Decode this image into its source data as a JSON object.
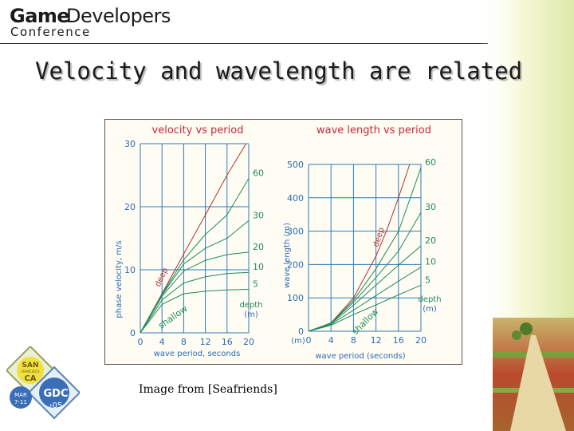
{
  "logo": {
    "game": "Game",
    "developers": "Developers",
    "conference": "Conference"
  },
  "slide_title": "Velocity and wavelength are related",
  "caption": "Image from [Seafriends]",
  "badge": {
    "city_line1": "SAN",
    "city_line2": "FRANCISCO",
    "state": "CA",
    "month": "MAR",
    "dates": "7-11",
    "brand": "GDC",
    "year": "›05"
  },
  "colors": {
    "chart_title": "#c8283c",
    "axis_label": "#2a6ab8",
    "depth_line": "#1e8a5a",
    "deep_line": "#b03030",
    "grid": "#2a7ab8"
  },
  "chart_data": [
    {
      "type": "line",
      "title": "velocity vs period",
      "xlabel": "wave period, seconds",
      "ylabel": "phase velocity, m/s",
      "xlim": [
        0,
        20
      ],
      "ylim": [
        0,
        30
      ],
      "x_ticks": [
        "0",
        "4",
        "8",
        "12",
        "16",
        "20"
      ],
      "y_ticks": [
        "0",
        "10",
        "20",
        "30"
      ],
      "annotations": {
        "deep": "deep",
        "shallow": "shallow",
        "depth": "depth",
        "unit": "(m)"
      },
      "series": [
        {
          "name": "deep",
          "x": [
            0,
            4,
            8,
            12,
            16,
            19.5
          ],
          "y": [
            0,
            6.2,
            12.5,
            18.7,
            25.0,
            30.0
          ]
        },
        {
          "name": "60",
          "x": [
            0,
            4,
            8,
            12,
            16,
            20
          ],
          "y": [
            0,
            6.1,
            11.6,
            15.6,
            18.7,
            24.5
          ]
        },
        {
          "name": "30",
          "x": [
            0,
            4,
            8,
            12,
            16,
            20
          ],
          "y": [
            0,
            6.0,
            10.9,
            13.4,
            15.0,
            17.8
          ]
        },
        {
          "name": "20",
          "x": [
            0,
            4,
            8,
            12,
            16,
            20
          ],
          "y": [
            0,
            5.8,
            9.8,
            11.5,
            12.4,
            12.8
          ]
        },
        {
          "name": "10",
          "x": [
            0,
            4,
            8,
            12,
            16,
            20
          ],
          "y": [
            0,
            5.2,
            7.9,
            8.9,
            9.4,
            9.6
          ]
        },
        {
          "name": "5",
          "x": [
            0,
            4,
            8,
            12,
            16,
            20
          ],
          "y": [
            0,
            4.5,
            6.2,
            6.6,
            6.8,
            6.9
          ]
        }
      ]
    },
    {
      "type": "line",
      "title": "wave length vs period",
      "xlabel": "wave period (seconds)",
      "ylabel": "wave length (m)",
      "xlim": [
        0,
        20
      ],
      "ylim": [
        0,
        500
      ],
      "x_ticks": [
        "0",
        "4",
        "8",
        "12",
        "16",
        "20"
      ],
      "y_ticks": [
        "0",
        "100",
        "200",
        "300",
        "400",
        "500"
      ],
      "annotations": {
        "deep": "deep",
        "shallow": "shallow",
        "depth": "depth",
        "unit": "(m)",
        "origin_unit": "(m)"
      },
      "series": [
        {
          "name": "deep",
          "x": [
            0,
            4,
            8,
            12,
            14,
            16,
            18
          ],
          "y": [
            0,
            25,
            100,
            225,
            306,
            400,
            506
          ]
        },
        {
          "name": "60",
          "x": [
            0,
            4,
            8,
            12,
            16,
            20
          ],
          "y": [
            0,
            24,
            93,
            187,
            299,
            490
          ]
        },
        {
          "name": "30",
          "x": [
            0,
            4,
            8,
            12,
            16,
            20
          ],
          "y": [
            0,
            24,
            87,
            161,
            240,
            356
          ]
        },
        {
          "name": "20",
          "x": [
            0,
            4,
            8,
            12,
            16,
            20
          ],
          "y": [
            0,
            23,
            78,
            138,
            198,
            256
          ]
        },
        {
          "name": "10",
          "x": [
            0,
            4,
            8,
            12,
            16,
            20
          ],
          "y": [
            0,
            21,
            63,
            107,
            150,
            192
          ]
        },
        {
          "name": "5",
          "x": [
            0,
            4,
            8,
            12,
            16,
            20
          ],
          "y": [
            0,
            18,
            50,
            79,
            109,
            138
          ]
        }
      ]
    }
  ]
}
